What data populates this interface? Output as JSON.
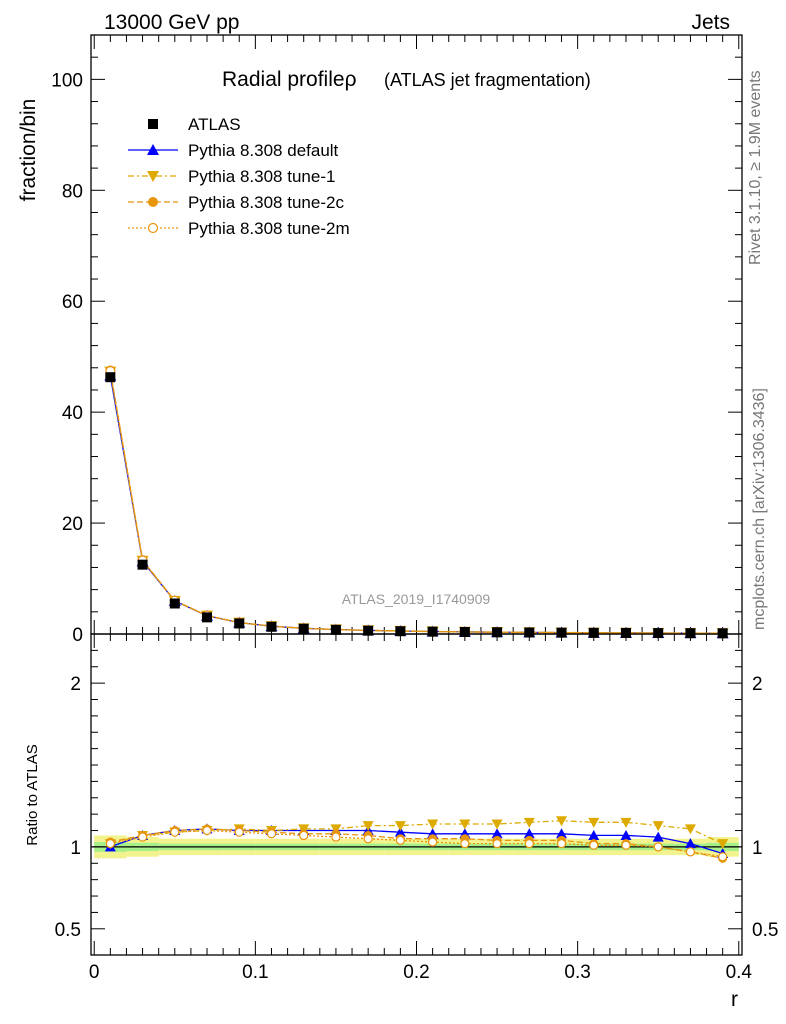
{
  "header": {
    "left": "13000 GeV pp",
    "right": "Jets",
    "title_main": "Radial profileρ",
    "title_sub": "(ATLAS jet fragmentation)",
    "watermark": "ATLAS_2019_I1740909",
    "side_top": "Rivet 3.1.10, ≥ 1.9M events",
    "side_bottom": "mcplots.cern.ch [arXiv:1306.3436]"
  },
  "legend": [
    {
      "label": "ATLAS",
      "color": "#000000",
      "marker": "square-filled",
      "dash": "none"
    },
    {
      "label": "Pythia 8.308 default",
      "color": "#0000ff",
      "marker": "triangle-up-filled",
      "dash": "solid"
    },
    {
      "label": "Pythia 8.308 tune-1",
      "color": "#ddaa00",
      "marker": "triangle-down-filled",
      "dash": "dashdot"
    },
    {
      "label": "Pythia 8.308 tune-2c",
      "color": "#e8950e",
      "marker": "circle-filled",
      "dash": "dashed"
    },
    {
      "label": "Pythia 8.308 tune-2m",
      "color": "#e8950e",
      "marker": "circle-open",
      "dash": "dotted"
    }
  ],
  "chart_data": {
    "type": "line",
    "xlabel": "r",
    "x_ticks": [
      "0",
      "0.1",
      "0.2",
      "0.3",
      "0.4"
    ],
    "x": [
      0.01,
      0.03,
      0.05,
      0.07,
      0.09,
      0.11,
      0.13,
      0.15,
      0.17,
      0.19,
      0.21,
      0.23,
      0.25,
      0.27,
      0.29,
      0.31,
      0.33,
      0.35,
      0.37,
      0.39
    ],
    "xlim": [
      -0.002,
      0.402
    ],
    "main": {
      "ylabel": "fraction/bin",
      "ylim": [
        0,
        108
      ],
      "y_ticks": [
        "0",
        "20",
        "40",
        "60",
        "80",
        "100"
      ],
      "series": [
        {
          "name": "ATLAS",
          "values": [
            46.3,
            12.5,
            5.5,
            3.0,
            1.9,
            1.3,
            0.95,
            0.75,
            0.6,
            0.5,
            0.42,
            0.36,
            0.31,
            0.27,
            0.24,
            0.21,
            0.19,
            0.17,
            0.15,
            0.13
          ]
        },
        {
          "name": "Pythia 8.308 default",
          "values": [
            46.6,
            13.1,
            5.95,
            3.3,
            2.05,
            1.4,
            1.02,
            0.81,
            0.65,
            0.54,
            0.45,
            0.38,
            0.33,
            0.29,
            0.26,
            0.22,
            0.2,
            0.18,
            0.15,
            0.125
          ]
        },
        {
          "name": "Pythia 8.308 tune-1",
          "values": [
            47.3,
            13.2,
            5.97,
            3.31,
            2.06,
            1.41,
            1.04,
            0.83,
            0.67,
            0.56,
            0.47,
            0.4,
            0.35,
            0.31,
            0.28,
            0.24,
            0.22,
            0.19,
            0.165,
            0.14
          ]
        },
        {
          "name": "Pythia 8.308 tune-2c",
          "values": [
            47.5,
            13.3,
            6.0,
            3.33,
            2.07,
            1.41,
            1.02,
            0.8,
            0.64,
            0.53,
            0.44,
            0.37,
            0.32,
            0.28,
            0.25,
            0.21,
            0.19,
            0.17,
            0.145,
            0.12
          ]
        },
        {
          "name": "Pythia 8.308 tune-2m",
          "values": [
            47.4,
            13.25,
            5.98,
            3.32,
            2.06,
            1.4,
            1.01,
            0.79,
            0.63,
            0.52,
            0.43,
            0.365,
            0.315,
            0.275,
            0.245,
            0.205,
            0.185,
            0.165,
            0.14,
            0.118
          ]
        }
      ]
    },
    "ratio": {
      "ylabel": "Ratio to ATLAS",
      "ylim": [
        0.34,
        2.3
      ],
      "y_ticks": [
        "0.5",
        "1",
        "2"
      ],
      "y_tick_values": [
        0.5,
        1,
        2
      ],
      "band_inner": [
        0.03,
        0.025,
        0.02,
        0.02,
        0.02,
        0.02,
        0.02,
        0.02,
        0.02,
        0.02,
        0.02,
        0.02,
        0.02,
        0.02,
        0.02,
        0.02,
        0.02,
        0.02,
        0.02,
        0.025
      ],
      "band_outer": [
        0.07,
        0.06,
        0.05,
        0.05,
        0.05,
        0.05,
        0.05,
        0.05,
        0.05,
        0.05,
        0.05,
        0.05,
        0.05,
        0.05,
        0.05,
        0.05,
        0.05,
        0.05,
        0.05,
        0.06
      ],
      "series": [
        {
          "name": "Pythia 8.308 default",
          "values": [
            1.0,
            1.07,
            1.1,
            1.11,
            1.1,
            1.1,
            1.1,
            1.1,
            1.1,
            1.09,
            1.08,
            1.08,
            1.08,
            1.08,
            1.08,
            1.07,
            1.07,
            1.06,
            1.02,
            0.96
          ]
        },
        {
          "name": "Pythia 8.308 tune-1",
          "values": [
            1.02,
            1.07,
            1.09,
            1.1,
            1.11,
            1.1,
            1.11,
            1.11,
            1.13,
            1.13,
            1.14,
            1.14,
            1.14,
            1.15,
            1.16,
            1.15,
            1.15,
            1.13,
            1.11,
            1.02
          ]
        },
        {
          "name": "Pythia 8.308 tune-2c",
          "values": [
            1.03,
            1.07,
            1.1,
            1.11,
            1.1,
            1.09,
            1.08,
            1.08,
            1.07,
            1.05,
            1.05,
            1.05,
            1.04,
            1.04,
            1.04,
            1.02,
            1.02,
            1.0,
            0.97,
            0.93
          ]
        },
        {
          "name": "Pythia 8.308 tune-2m",
          "values": [
            1.02,
            1.06,
            1.09,
            1.1,
            1.09,
            1.08,
            1.07,
            1.06,
            1.05,
            1.04,
            1.03,
            1.02,
            1.02,
            1.02,
            1.02,
            1.01,
            1.01,
            1.0,
            0.97,
            0.94
          ]
        }
      ]
    }
  }
}
